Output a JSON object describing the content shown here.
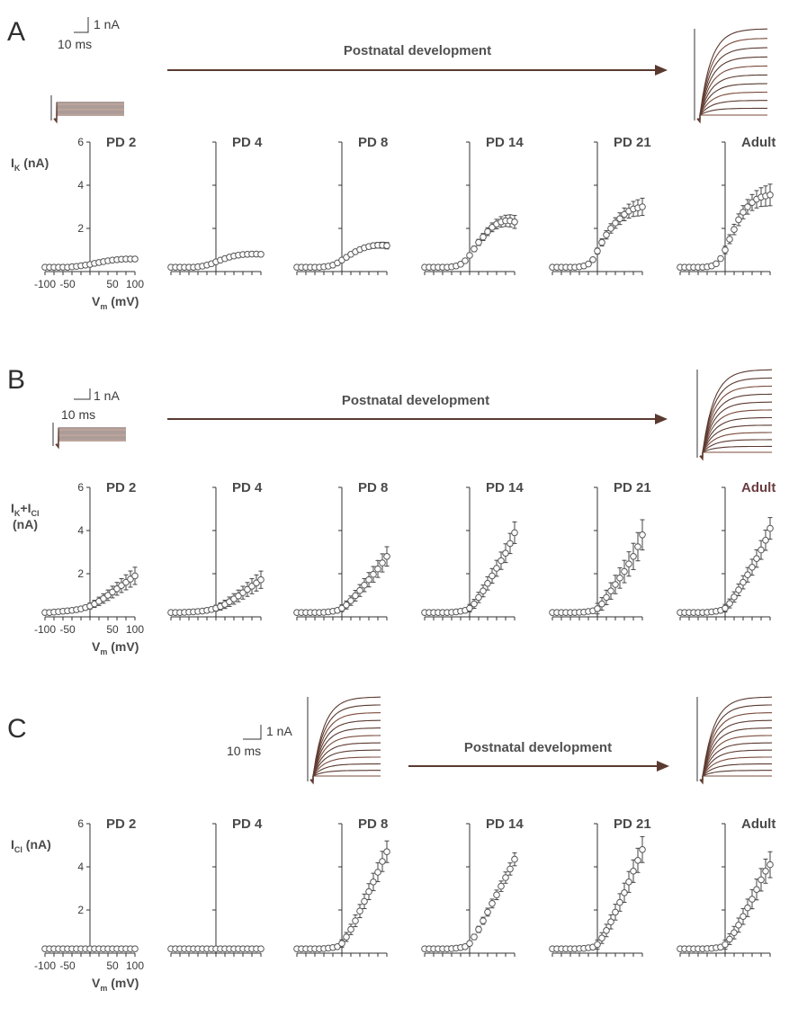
{
  "labels": {
    "scale_current": "1 nA",
    "scale_time": "10 ms",
    "arrow_text": "Postnatal development",
    "xticks": [
      "-100",
      "-50",
      "50",
      "100"
    ],
    "xaxis_main": "V",
    "xaxis_sub": "m",
    "xaxis_unit": "(mV)",
    "yticks": [
      "6",
      "4",
      "2"
    ]
  },
  "colors": {
    "trace": "#5a3a30",
    "trace_alt": "#7a4a3a",
    "axis": "#333333"
  },
  "chart_data": [
    {
      "type": "scatter",
      "panel": "A",
      "ylabel": {
        "main": "I",
        "sub": "K",
        "unit": "(nA)"
      },
      "xlim": [
        -100,
        100
      ],
      "ylim": [
        0,
        6
      ],
      "x": [
        -100,
        -90,
        -80,
        -70,
        -60,
        -50,
        -40,
        -30,
        -20,
        -10,
        0,
        10,
        20,
        30,
        40,
        50,
        60,
        70,
        80,
        90,
        100
      ],
      "series": [
        {
          "name": "PD 2",
          "values": [
            0.2,
            0.2,
            0.2,
            0.2,
            0.2,
            0.2,
            0.22,
            0.24,
            0.27,
            0.3,
            0.33,
            0.38,
            0.42,
            0.46,
            0.5,
            0.53,
            0.55,
            0.57,
            0.58,
            0.58,
            0.58
          ],
          "err": 0.05
        },
        {
          "name": "PD 4",
          "values": [
            0.2,
            0.2,
            0.2,
            0.2,
            0.2,
            0.2,
            0.22,
            0.25,
            0.3,
            0.36,
            0.45,
            0.53,
            0.6,
            0.67,
            0.72,
            0.76,
            0.79,
            0.8,
            0.81,
            0.81,
            0.8
          ],
          "err": 0.05
        },
        {
          "name": "PD 8",
          "values": [
            0.2,
            0.2,
            0.2,
            0.2,
            0.2,
            0.2,
            0.22,
            0.25,
            0.3,
            0.4,
            0.53,
            0.66,
            0.8,
            0.92,
            1.02,
            1.1,
            1.16,
            1.2,
            1.22,
            1.22,
            1.2
          ],
          "err": 0.15
        },
        {
          "name": "PD 14",
          "values": [
            0.2,
            0.2,
            0.2,
            0.2,
            0.2,
            0.2,
            0.22,
            0.26,
            0.34,
            0.5,
            0.75,
            1.05,
            1.35,
            1.6,
            1.85,
            2.05,
            2.2,
            2.3,
            2.35,
            2.35,
            2.3
          ],
          "err": 0.3
        },
        {
          "name": "PD 21",
          "values": [
            0.2,
            0.2,
            0.2,
            0.2,
            0.2,
            0.2,
            0.22,
            0.26,
            0.35,
            0.55,
            0.95,
            1.35,
            1.7,
            2.0,
            2.25,
            2.45,
            2.65,
            2.8,
            2.9,
            2.95,
            3.0
          ],
          "err": 0.4
        },
        {
          "name": "Adult",
          "values": [
            0.2,
            0.2,
            0.2,
            0.2,
            0.2,
            0.2,
            0.22,
            0.26,
            0.36,
            0.6,
            1.0,
            1.5,
            1.95,
            2.4,
            2.75,
            3.0,
            3.2,
            3.35,
            3.45,
            3.5,
            3.55
          ],
          "err": 0.5
        }
      ]
    },
    {
      "type": "scatter",
      "panel": "B",
      "ylabel": {
        "main": "I",
        "sub": "K",
        "main2": "+I",
        "sub2": "Cl",
        "unit": "(nA)"
      },
      "xlim": [
        -100,
        100
      ],
      "ylim": [
        0,
        6
      ],
      "x": [
        -100,
        -90,
        -80,
        -70,
        -60,
        -50,
        -40,
        -30,
        -20,
        -10,
        0,
        10,
        20,
        30,
        40,
        50,
        60,
        70,
        80,
        90,
        100
      ],
      "series": [
        {
          "name": "PD 2",
          "values": [
            0.2,
            0.2,
            0.22,
            0.24,
            0.26,
            0.28,
            0.3,
            0.33,
            0.37,
            0.43,
            0.5,
            0.6,
            0.72,
            0.85,
            1.0,
            1.15,
            1.3,
            1.45,
            1.6,
            1.75,
            1.9
          ],
          "err": 0.4
        },
        {
          "name": "PD 4",
          "values": [
            0.2,
            0.2,
            0.2,
            0.21,
            0.22,
            0.23,
            0.25,
            0.27,
            0.3,
            0.34,
            0.4,
            0.48,
            0.58,
            0.7,
            0.83,
            0.97,
            1.12,
            1.27,
            1.42,
            1.57,
            1.72
          ],
          "err": 0.4
        },
        {
          "name": "PD 8",
          "values": [
            0.2,
            0.2,
            0.2,
            0.2,
            0.2,
            0.2,
            0.21,
            0.23,
            0.26,
            0.3,
            0.4,
            0.55,
            0.75,
            0.98,
            1.22,
            1.47,
            1.72,
            1.97,
            2.22,
            2.5,
            2.8
          ],
          "err": 0.45
        },
        {
          "name": "PD 14",
          "values": [
            0.2,
            0.2,
            0.2,
            0.2,
            0.2,
            0.2,
            0.21,
            0.23,
            0.26,
            0.3,
            0.4,
            0.6,
            0.9,
            1.2,
            1.55,
            1.9,
            2.25,
            2.6,
            2.95,
            3.4,
            3.9
          ],
          "err": 0.5
        },
        {
          "name": "PD 21",
          "values": [
            0.2,
            0.2,
            0.2,
            0.2,
            0.2,
            0.2,
            0.21,
            0.22,
            0.25,
            0.28,
            0.38,
            0.6,
            0.9,
            1.2,
            1.5,
            1.8,
            2.1,
            2.45,
            2.8,
            3.25,
            3.8
          ],
          "err": 0.7
        },
        {
          "name": "Adult",
          "values": [
            0.2,
            0.2,
            0.2,
            0.2,
            0.2,
            0.2,
            0.21,
            0.23,
            0.26,
            0.3,
            0.4,
            0.62,
            0.92,
            1.25,
            1.6,
            1.95,
            2.3,
            2.7,
            3.1,
            3.55,
            4.1
          ],
          "err": 0.5
        }
      ]
    },
    {
      "type": "scatter",
      "panel": "C",
      "ylabel": {
        "main": "I",
        "sub": "Cl",
        "unit": "(nA)"
      },
      "xlim": [
        -100,
        100
      ],
      "ylim": [
        0,
        6
      ],
      "x": [
        -100,
        -90,
        -80,
        -70,
        -60,
        -50,
        -40,
        -30,
        -20,
        -10,
        0,
        10,
        20,
        30,
        40,
        50,
        60,
        70,
        80,
        90,
        100
      ],
      "series": [
        {
          "name": "PD 2",
          "values": [
            0.2,
            0.2,
            0.2,
            0.2,
            0.2,
            0.2,
            0.2,
            0.2,
            0.2,
            0.2,
            0.2,
            0.2,
            0.2,
            0.2,
            0.2,
            0.2,
            0.2,
            0.2,
            0.2,
            0.2,
            0.2
          ],
          "err": 0
        },
        {
          "name": "PD 4",
          "values": [
            0.2,
            0.2,
            0.2,
            0.2,
            0.2,
            0.2,
            0.2,
            0.2,
            0.2,
            0.2,
            0.2,
            0.2,
            0.2,
            0.2,
            0.2,
            0.2,
            0.2,
            0.2,
            0.2,
            0.2,
            0.2
          ],
          "err": 0
        },
        {
          "name": "PD 8",
          "values": [
            0.2,
            0.2,
            0.2,
            0.2,
            0.2,
            0.2,
            0.21,
            0.23,
            0.26,
            0.3,
            0.45,
            0.75,
            1.1,
            1.5,
            1.95,
            2.4,
            2.85,
            3.3,
            3.75,
            4.25,
            4.7
          ],
          "err": 0.5
        },
        {
          "name": "PD 14",
          "values": [
            0.2,
            0.2,
            0.2,
            0.2,
            0.2,
            0.2,
            0.21,
            0.23,
            0.26,
            0.3,
            0.45,
            0.75,
            1.1,
            1.5,
            1.9,
            2.3,
            2.7,
            3.1,
            3.5,
            3.9,
            4.35
          ],
          "err": 0.3
        },
        {
          "name": "PD 21",
          "values": [
            0.2,
            0.2,
            0.2,
            0.2,
            0.2,
            0.2,
            0.21,
            0.22,
            0.25,
            0.28,
            0.4,
            0.7,
            1.05,
            1.45,
            1.9,
            2.35,
            2.8,
            3.3,
            3.8,
            4.3,
            4.8
          ],
          "err": 0.6
        },
        {
          "name": "Adult",
          "values": [
            0.2,
            0.2,
            0.2,
            0.2,
            0.2,
            0.2,
            0.21,
            0.22,
            0.25,
            0.28,
            0.4,
            0.65,
            0.95,
            1.3,
            1.7,
            2.1,
            2.5,
            2.95,
            3.4,
            3.8,
            4.1
          ],
          "err": 0.6
        }
      ]
    }
  ]
}
